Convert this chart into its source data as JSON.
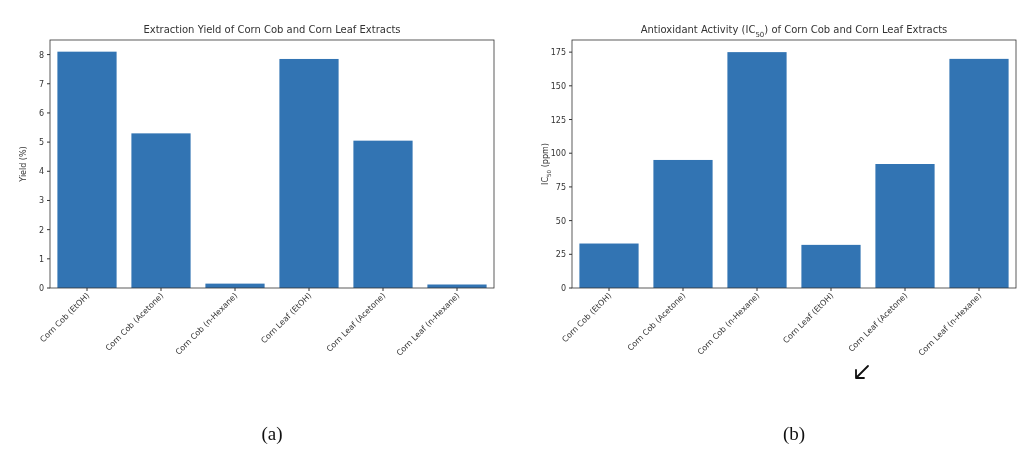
{
  "chart_data": [
    {
      "type": "bar",
      "title": "Extraction Yield of Corn Cob and Corn Leaf Extracts",
      "ylabel": "Yield (%)",
      "categories": [
        "Corn Cob (EtOH)",
        "Corn Cob (Acetone)",
        "Corn Cob (n-Hexane)",
        "Corn Leaf (EtOH)",
        "Corn Leaf (Acetone)",
        "Corn Leaf (n-Hexane)"
      ],
      "series": [
        {
          "color": "#3274b3",
          "values": [
            8.1,
            5.3,
            0.15,
            7.85,
            5.05,
            0.12
          ]
        }
      ],
      "ylim": [
        0,
        8.5
      ],
      "yticks": [
        0,
        1,
        2,
        3,
        4,
        5,
        6,
        7,
        8
      ],
      "grid": false,
      "annotations": [
        "(a)"
      ]
    },
    {
      "type": "bar",
      "title": "Antioxidant Activity (IC$_{50}$) of Corn Cob and Corn Leaf Extracts",
      "ylabel": "IC$_{50}$ (ppm)",
      "categories": [
        "Corn Cob (EtOH)",
        "Corn Cob (Acetone)",
        "Corn Cob (n-Hexane)",
        "Corn Leaf (EtOH)",
        "Corn Leaf (Acetone)",
        "Corn Leaf (n-Hexane)"
      ],
      "series": [
        {
          "color": "#3274b3",
          "values": [
            33,
            95,
            175,
            32,
            92,
            170
          ]
        }
      ],
      "ylim": [
        0,
        184
      ],
      "yticks": [
        0,
        25,
        50,
        75,
        100,
        125,
        150,
        175
      ],
      "grid": false,
      "annotations": [
        "(b)"
      ]
    }
  ]
}
